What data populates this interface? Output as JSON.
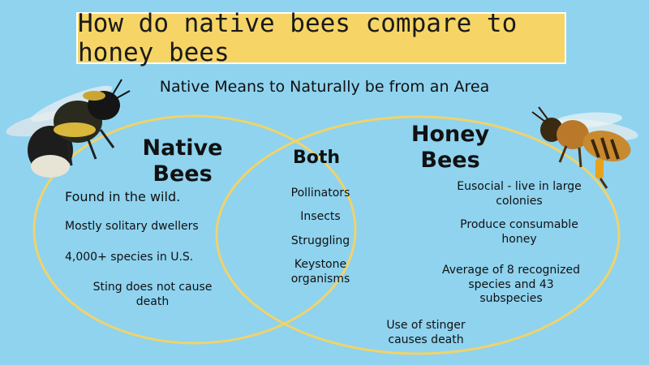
{
  "title": "How do native bees compare to honey bees",
  "subtitle": "Native Means to Naturally be from an Area",
  "colors": {
    "background": "#8fd3ef",
    "title_box": "#f6d566",
    "ellipse_outline": "#f0d36a"
  },
  "native": {
    "heading_line1": "Native",
    "heading_line2": "Bees",
    "items": [
      "Found in the wild.",
      "Mostly solitary dwellers",
      "4,000+ species in U.S.",
      "Sting does not cause death"
    ]
  },
  "both": {
    "heading": "Both",
    "items": [
      "Pollinators",
      "Insects",
      "Struggling",
      "Keystone organisms"
    ]
  },
  "honey": {
    "heading_line1": "Honey",
    "heading_line2": "Bees",
    "items": [
      "Eusocial - live in large colonies",
      "Produce consumable honey",
      "Average of 8 recognized species and 43 subspecies",
      "Use of stinger causes death"
    ]
  },
  "icons": {
    "left": "bumblebee-icon",
    "right": "honeybee-icon"
  }
}
